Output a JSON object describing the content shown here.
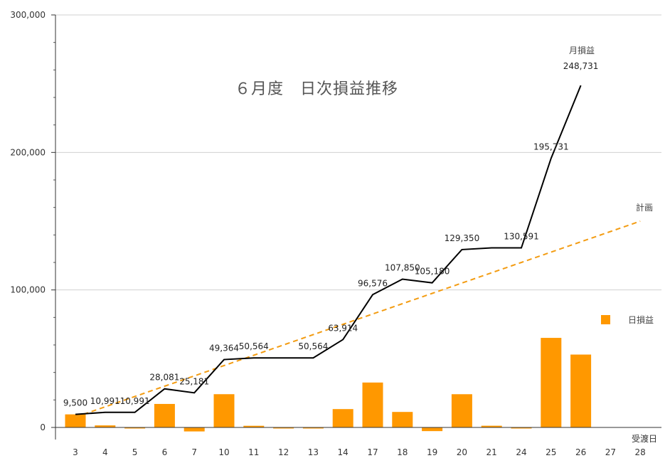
{
  "chart_data": {
    "type": "bar+line",
    "title": "６月度　日次損益推移",
    "xlabel": "受渡日",
    "ylabel": "",
    "ylim": [
      0,
      300000
    ],
    "y_ticks": [
      "0",
      "100,000",
      "200,000",
      "300,000"
    ],
    "categories": [
      "3",
      "4",
      "5",
      "6",
      "7",
      "10",
      "11",
      "12",
      "13",
      "14",
      "17",
      "18",
      "19",
      "20",
      "21",
      "24",
      "25",
      "26",
      "27",
      "28"
    ],
    "series": [
      {
        "name": "日損益",
        "type": "bar",
        "color": "#FF9800",
        "values": [
          9500,
          1491,
          0,
          17090,
          -2900,
          24183,
          1200,
          0,
          0,
          13350,
          32662,
          11274,
          -2670,
          24170,
          1241,
          0,
          65140,
          53000,
          null,
          null
        ]
      },
      {
        "name": "月損益",
        "type": "line",
        "color": "#000000",
        "values": [
          9500,
          10991,
          10991,
          28081,
          25181,
          49364,
          50564,
          50564,
          50564,
          63914,
          96576,
          107850,
          105180,
          129350,
          130591,
          130591,
          195731,
          248731,
          null,
          null
        ]
      },
      {
        "name": "計画",
        "type": "line",
        "color": "#F39C12",
        "dashed": true,
        "values": [
          7500,
          15000,
          22500,
          30000,
          37500,
          45000,
          52500,
          60000,
          67500,
          75000,
          82500,
          90000,
          97500,
          105000,
          112500,
          120000,
          127500,
          135000,
          142500,
          150000
        ]
      }
    ],
    "data_labels": [
      {
        "index": 0,
        "text": "9,500"
      },
      {
        "index": 1,
        "text": "10,991"
      },
      {
        "index": 2,
        "text": "10,991"
      },
      {
        "index": 3,
        "text": "28,081"
      },
      {
        "index": 4,
        "text": "25,181"
      },
      {
        "index": 5,
        "text": "49,364"
      },
      {
        "index": 6,
        "text": "50,564"
      },
      {
        "index": 8,
        "text": "50,564"
      },
      {
        "index": 9,
        "text": "63,914"
      },
      {
        "index": 10,
        "text": "96,576"
      },
      {
        "index": 11,
        "text": "107,850"
      },
      {
        "index": 12,
        "text": "105,180"
      },
      {
        "index": 13,
        "text": "129,350"
      },
      {
        "index": 15,
        "text": "130,591"
      },
      {
        "index": 16,
        "text": "195,731"
      },
      {
        "index": 17,
        "text": "248,731"
      }
    ],
    "grid": true,
    "legend": "right"
  }
}
